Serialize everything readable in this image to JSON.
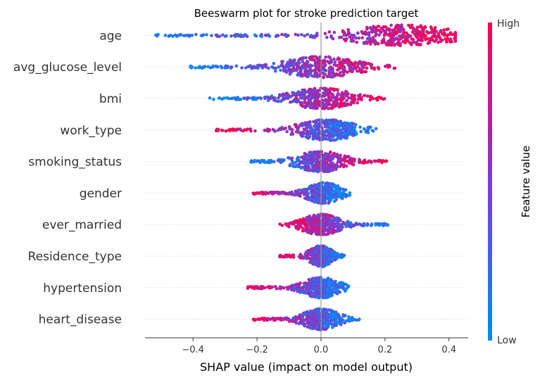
{
  "chart_data": {
    "type": "scatter",
    "subtype": "beeswarm",
    "title": "Beeswarm plot for stroke prediction target",
    "xlabel": "SHAP value (impact on model output)",
    "xlim": [
      -0.55,
      0.46
    ],
    "xticks": [
      -0.4,
      -0.2,
      0.0,
      0.2,
      0.4
    ],
    "xtick_labels": [
      "−0.4",
      "−0.2",
      "0.0",
      "0.2",
      "0.4"
    ],
    "colorbar": {
      "label": "Feature value",
      "high": "High",
      "low": "Low",
      "high_color": "#ff0052",
      "low_color": "#008bfb"
    },
    "features": [
      {
        "name": "age",
        "min": -0.52,
        "max": 0.42,
        "peak": 0.25,
        "low_side": "negative"
      },
      {
        "name": "avg_glucose_level",
        "min": -0.41,
        "max": 0.26,
        "peak": 0.0,
        "low_side": "negative"
      },
      {
        "name": "bmi",
        "min": -0.35,
        "max": 0.2,
        "peak": 0.0,
        "low_side": "negative"
      },
      {
        "name": "work_type",
        "min": -0.33,
        "max": 0.19,
        "peak": 0.02,
        "low_side": "positive"
      },
      {
        "name": "smoking_status",
        "min": -0.22,
        "max": 0.21,
        "peak": 0.0,
        "low_side": "negative"
      },
      {
        "name": "gender",
        "min": -0.22,
        "max": 0.09,
        "peak": 0.01,
        "low_side": "positive"
      },
      {
        "name": "ever_married",
        "min": -0.13,
        "max": 0.21,
        "peak": 0.0,
        "low_side": "positive"
      },
      {
        "name": "Residence_type",
        "min": -0.13,
        "max": 0.08,
        "peak": 0.0,
        "low_side": "positive"
      },
      {
        "name": "hypertension",
        "min": -0.23,
        "max": 0.09,
        "peak": 0.0,
        "low_side": "positive"
      },
      {
        "name": "heart_disease",
        "min": -0.22,
        "max": 0.12,
        "peak": 0.0,
        "low_side": "positive"
      }
    ]
  }
}
